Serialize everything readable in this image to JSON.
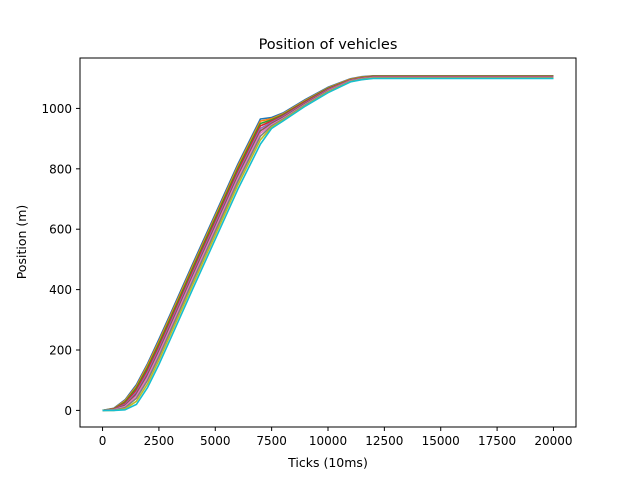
{
  "chart_data": {
    "type": "line",
    "title": "Position of vehicles",
    "xlabel": "Ticks (10ms)",
    "ylabel": "Position (m)",
    "xlim": [
      -1000,
      21000
    ],
    "ylim": [
      -55,
      1167
    ],
    "xticks": [
      0,
      2500,
      5000,
      7500,
      10000,
      12500,
      15000,
      17500,
      20000
    ],
    "yticks": [
      0,
      200,
      400,
      600,
      800,
      1000
    ],
    "grid": false,
    "legend": "none",
    "series": [
      {
        "color": "#1f77b4",
        "x": [
          0,
          500,
          1000,
          1500,
          2000,
          2500,
          3000,
          4000,
          5000,
          6000,
          7000,
          7500,
          8000,
          9000,
          10000,
          11000,
          11500,
          12000,
          20000
        ],
        "y": [
          0,
          7,
          35,
          85,
          155,
          235,
          318,
          485,
          650,
          815,
          965,
          970,
          985,
          1030,
          1070,
          1098,
          1105,
          1108,
          1108
        ]
      },
      {
        "color": "#ff7f0e",
        "x": [
          0,
          500,
          1000,
          1500,
          2000,
          2500,
          3000,
          4000,
          5000,
          6000,
          7000,
          7500,
          8000,
          9000,
          10000,
          11000,
          11500,
          12000,
          20000
        ],
        "y": [
          0,
          6,
          32,
          80,
          150,
          228,
          311,
          478,
          643,
          808,
          958,
          966,
          982,
          1027,
          1068,
          1097,
          1104,
          1107,
          1107
        ]
      },
      {
        "color": "#2ca02c",
        "x": [
          0,
          500,
          1000,
          1500,
          2000,
          2500,
          3000,
          4000,
          5000,
          6000,
          7000,
          7500,
          8000,
          9000,
          10000,
          11000,
          11500,
          12000,
          20000
        ],
        "y": [
          0,
          5,
          28,
          74,
          142,
          220,
          303,
          470,
          635,
          800,
          950,
          962,
          979,
          1024,
          1066,
          1095,
          1102,
          1106,
          1106
        ]
      },
      {
        "color": "#d62728",
        "x": [
          0,
          500,
          1000,
          1500,
          2000,
          2500,
          3000,
          4000,
          5000,
          6000,
          7000,
          7500,
          8000,
          9000,
          10000,
          11000,
          11500,
          12000,
          20000
        ],
        "y": [
          0,
          4,
          24,
          68,
          134,
          212,
          295,
          462,
          627,
          792,
          942,
          958,
          976,
          1022,
          1064,
          1094,
          1101,
          1105,
          1105
        ]
      },
      {
        "color": "#9467bd",
        "x": [
          0,
          500,
          1000,
          1500,
          2000,
          2500,
          3000,
          4000,
          5000,
          6000,
          7000,
          7500,
          8000,
          9000,
          10000,
          11000,
          11500,
          12000,
          20000
        ],
        "y": [
          0,
          3,
          20,
          61,
          126,
          204,
          287,
          454,
          619,
          784,
          934,
          954,
          973,
          1019,
          1062,
          1093,
          1100,
          1104,
          1104
        ]
      },
      {
        "color": "#8c564b",
        "x": [
          0,
          500,
          1000,
          1500,
          2000,
          2500,
          3000,
          4000,
          5000,
          6000,
          7000,
          7500,
          8000,
          9000,
          10000,
          11000,
          11500,
          12000,
          20000
        ],
        "y": [
          0,
          3,
          17,
          55,
          118,
          196,
          279,
          446,
          611,
          776,
          926,
          950,
          970,
          1017,
          1060,
          1092,
          1099,
          1103,
          1103
        ]
      },
      {
        "color": "#e377c2",
        "x": [
          0,
          500,
          1000,
          1500,
          2000,
          2500,
          3000,
          4000,
          5000,
          6000,
          7000,
          7500,
          8000,
          9000,
          10000,
          11000,
          11500,
          12000,
          20000
        ],
        "y": [
          0,
          2,
          13,
          48,
          110,
          188,
          271,
          438,
          603,
          768,
          918,
          946,
          967,
          1014,
          1058,
          1091,
          1098,
          1102,
          1102
        ]
      },
      {
        "color": "#7f7f7f",
        "x": [
          0,
          500,
          1000,
          1500,
          2000,
          2500,
          3000,
          4000,
          5000,
          6000,
          7000,
          7500,
          8000,
          9000,
          10000,
          11000,
          11500,
          12000,
          20000
        ],
        "y": [
          0,
          1,
          9,
          40,
          100,
          178,
          261,
          428,
          593,
          758,
          908,
          942,
          964,
          1012,
          1056,
          1090,
          1097,
          1101,
          1101
        ]
      },
      {
        "color": "#bcbd22",
        "x": [
          0,
          500,
          1000,
          1500,
          2000,
          2500,
          3000,
          4000,
          5000,
          6000,
          7000,
          7500,
          8000,
          9000,
          10000,
          11000,
          11500,
          12000,
          20000
        ],
        "y": [
          0,
          0,
          5,
          30,
          88,
          166,
          249,
          416,
          581,
          746,
          896,
          938,
          961,
          1010,
          1054,
          1089,
          1096,
          1100,
          1100
        ]
      },
      {
        "color": "#17becf",
        "x": [
          0,
          500,
          1000,
          1500,
          2000,
          2500,
          3000,
          4000,
          5000,
          6000,
          7000,
          7500,
          8000,
          9000,
          10000,
          11000,
          11500,
          12000,
          20000
        ],
        "y": [
          0,
          0,
          2,
          20,
          76,
          152,
          235,
          402,
          567,
          732,
          882,
          934,
          958,
          1008,
          1052,
          1088,
          1095,
          1099,
          1099
        ]
      }
    ]
  }
}
